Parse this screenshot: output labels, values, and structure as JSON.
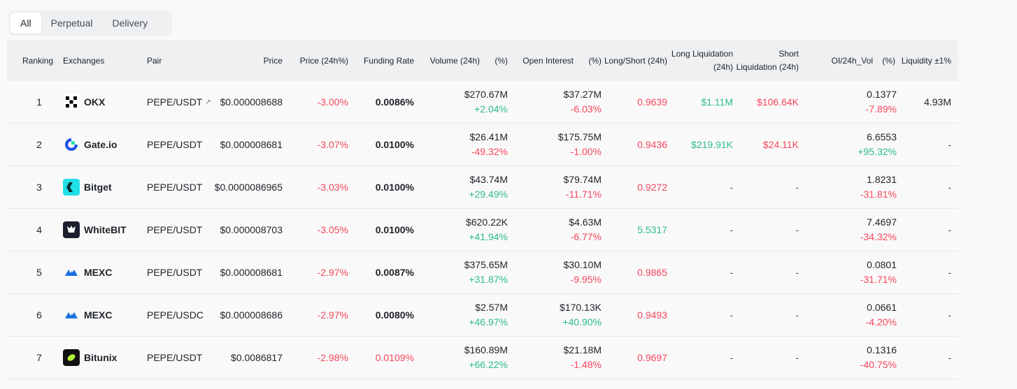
{
  "tabs": [
    {
      "label": "All",
      "active": true
    },
    {
      "label": "Perpetual",
      "active": false
    },
    {
      "label": "Delivery",
      "active": false
    }
  ],
  "headers": {
    "ranking": "Ranking",
    "exchanges": "Exchanges",
    "pair": "Pair",
    "price": "Price",
    "price_24h": "Price (24h%)",
    "funding_rate": "Funding Rate",
    "volume_24h": "Volume (24h)",
    "volume_pct": "(%)",
    "open_interest": "Open Interest",
    "oi_pct": "(%)",
    "long_short": "Long/Short (24h)",
    "long_liq_1": "Long Liquidation",
    "long_liq_2": "(24h)",
    "short_liq_1": "Short",
    "short_liq_2": "Liquidation (24h)",
    "oi_vol": "OI/24h_Vol",
    "oi_vol_pct": "(%)",
    "liquidity": "Liquidity ±1%"
  },
  "rows": [
    {
      "rank": "1",
      "exchange": "OKX",
      "logo": "okx-logo",
      "pair": "PEPE/USDT",
      "pair_link": true,
      "price": "$0.000008688",
      "change": "-3.00%",
      "funding": "0.0086%",
      "funding_color": "dark",
      "volume": "$270.67M",
      "volume_pct": "+2.04%",
      "volume_up": true,
      "oi": "$37.27M",
      "oi_pct": "-6.03%",
      "oi_up": false,
      "long_short": "0.9639",
      "ls_up": false,
      "long_liq": "$1.11M",
      "short_liq": "$106.64K",
      "oi_vol": "0.1377",
      "oi_vol_pct": "-7.89%",
      "oi_vol_up": false,
      "liquidity": "4.93M"
    },
    {
      "rank": "2",
      "exchange": "Gate.io",
      "logo": "gateio-logo",
      "pair": "PEPE/USDT",
      "pair_link": false,
      "price": "$0.000008681",
      "change": "-3.07%",
      "funding": "0.0100%",
      "funding_color": "dark",
      "volume": "$26.41M",
      "volume_pct": "-49.32%",
      "volume_up": false,
      "oi": "$175.75M",
      "oi_pct": "-1.00%",
      "oi_up": false,
      "long_short": "0.9436",
      "ls_up": false,
      "long_liq": "$219.91K",
      "short_liq": "$24.11K",
      "oi_vol": "6.6553",
      "oi_vol_pct": "+95.32%",
      "oi_vol_up": true,
      "liquidity": "-"
    },
    {
      "rank": "3",
      "exchange": "Bitget",
      "logo": "bitget-logo",
      "pair": "PEPE/USDT",
      "pair_link": false,
      "price": "$0.0000086965",
      "change": "-3.03%",
      "funding": "0.0100%",
      "funding_color": "dark",
      "volume": "$43.74M",
      "volume_pct": "+29.49%",
      "volume_up": true,
      "oi": "$79.74M",
      "oi_pct": "-11.71%",
      "oi_up": false,
      "long_short": "0.9272",
      "ls_up": false,
      "long_liq": "-",
      "short_liq": "-",
      "oi_vol": "1.8231",
      "oi_vol_pct": "-31.81%",
      "oi_vol_up": false,
      "liquidity": "-"
    },
    {
      "rank": "4",
      "exchange": "WhiteBIT",
      "logo": "whitebit-logo",
      "pair": "PEPE/USDT",
      "pair_link": false,
      "price": "$0.000008703",
      "change": "-3.05%",
      "funding": "0.0100%",
      "funding_color": "dark",
      "volume": "$620.22K",
      "volume_pct": "+41.94%",
      "volume_up": true,
      "oi": "$4.63M",
      "oi_pct": "-6.77%",
      "oi_up": false,
      "long_short": "5.5317",
      "ls_up": true,
      "long_liq": "-",
      "short_liq": "-",
      "oi_vol": "7.4697",
      "oi_vol_pct": "-34.32%",
      "oi_vol_up": false,
      "liquidity": "-"
    },
    {
      "rank": "5",
      "exchange": "MEXC",
      "logo": "mexc-logo",
      "pair": "PEPE/USDT",
      "pair_link": false,
      "price": "$0.000008681",
      "change": "-2.97%",
      "funding": "0.0087%",
      "funding_color": "dark",
      "volume": "$375.65M",
      "volume_pct": "+31.87%",
      "volume_up": true,
      "oi": "$30.10M",
      "oi_pct": "-9.95%",
      "oi_up": false,
      "long_short": "0.9865",
      "ls_up": false,
      "long_liq": "-",
      "short_liq": "-",
      "oi_vol": "0.0801",
      "oi_vol_pct": "-31.71%",
      "oi_vol_up": false,
      "liquidity": "-"
    },
    {
      "rank": "6",
      "exchange": "MEXC",
      "logo": "mexc-logo",
      "pair": "PEPE/USDC",
      "pair_link": false,
      "price": "$0.000008686",
      "change": "-2.97%",
      "funding": "0.0080%",
      "funding_color": "dark",
      "volume": "$2.57M",
      "volume_pct": "+46.97%",
      "volume_up": true,
      "oi": "$170.13K",
      "oi_pct": "+40.90%",
      "oi_up": true,
      "long_short": "0.9493",
      "ls_up": false,
      "long_liq": "-",
      "short_liq": "-",
      "oi_vol": "0.0661",
      "oi_vol_pct": "-4.20%",
      "oi_vol_up": false,
      "liquidity": "-"
    },
    {
      "rank": "7",
      "exchange": "Bitunix",
      "logo": "bitunix-logo",
      "pair": "PEPE/USDT",
      "pair_link": false,
      "price": "$0.0086817",
      "change": "-2.98%",
      "funding": "0.0109%",
      "funding_color": "red",
      "volume": "$160.89M",
      "volume_pct": "+66.22%",
      "volume_up": true,
      "oi": "$21.18M",
      "oi_pct": "-1.48%",
      "oi_up": false,
      "long_short": "0.9697",
      "ls_up": false,
      "long_liq": "-",
      "short_liq": "-",
      "oi_vol": "0.1316",
      "oi_vol_pct": "-40.75%",
      "oi_vol_up": false,
      "liquidity": "-"
    }
  ],
  "colors": {
    "up": "#2ebd85",
    "down": "#f6465d"
  }
}
